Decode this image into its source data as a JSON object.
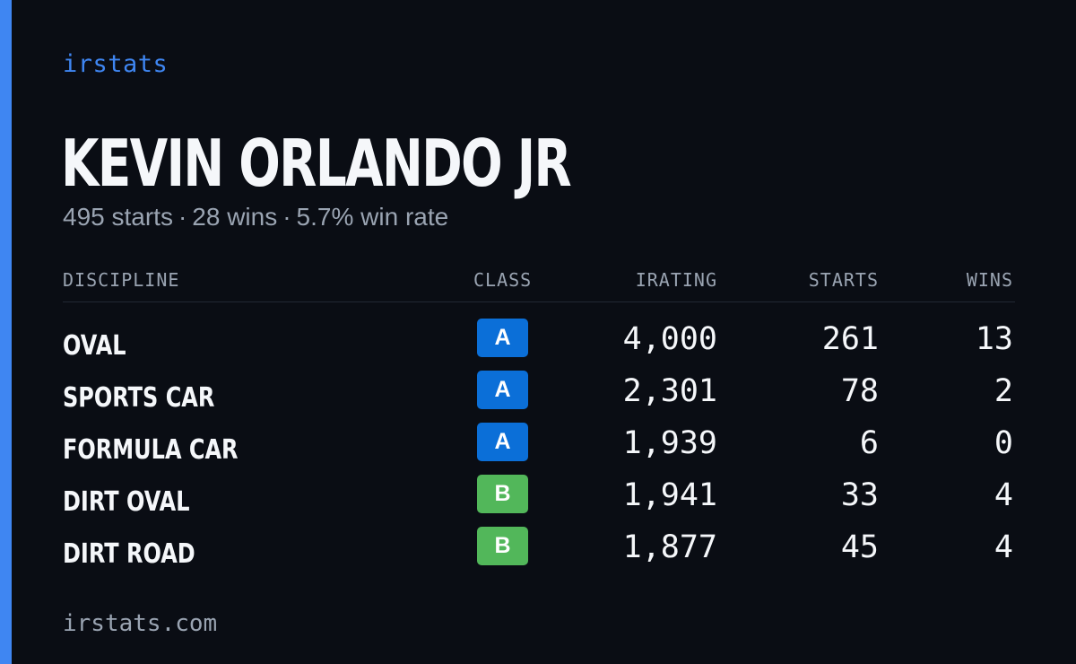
{
  "brand": "irstats",
  "driver": {
    "name": "KEVIN ORLANDO JR"
  },
  "summary": {
    "starts": "495 starts",
    "wins": "28 wins",
    "win_rate": "5.7% win rate",
    "separator": "·"
  },
  "table": {
    "headers": {
      "discipline": "DISCIPLINE",
      "class": "CLASS",
      "irating": "IRATING",
      "starts": "STARTS",
      "wins": "WINS"
    },
    "rows": [
      {
        "discipline": "OVAL",
        "class": "A",
        "irating": "4,000",
        "starts": "261",
        "wins": "13"
      },
      {
        "discipline": "SPORTS CAR",
        "class": "A",
        "irating": "2,301",
        "starts": "78",
        "wins": "2"
      },
      {
        "discipline": "FORMULA CAR",
        "class": "A",
        "irating": "1,939",
        "starts": "6",
        "wins": "0"
      },
      {
        "discipline": "DIRT OVAL",
        "class": "B",
        "irating": "1,941",
        "starts": "33",
        "wins": "4"
      },
      {
        "discipline": "DIRT ROAD",
        "class": "B",
        "irating": "1,877",
        "starts": "45",
        "wins": "4"
      }
    ]
  },
  "class_colors": {
    "A": "#0b6fd8",
    "B": "#52b75a"
  },
  "colors": {
    "accent": "#3f86f2",
    "background": "#0a0d14",
    "muted_text": "#9aa4b2"
  },
  "footer": {
    "url": "irstats.com"
  }
}
